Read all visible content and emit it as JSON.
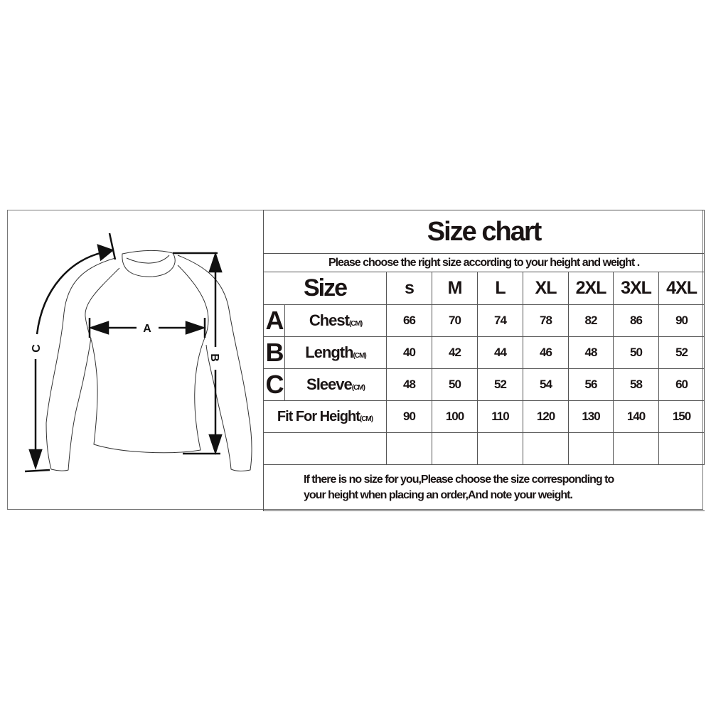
{
  "title": "Size chart",
  "subtitle": "Please choose the right size according to your height and weight .",
  "header": {
    "label": "Size",
    "sizes": [
      "s",
      "M",
      "L",
      "XL",
      "2XL",
      "3XL",
      "4XL"
    ]
  },
  "rows": [
    {
      "letter": "A",
      "label": "Chest",
      "unit": "(CM)",
      "values": [
        "66",
        "70",
        "74",
        "78",
        "82",
        "86",
        "90"
      ]
    },
    {
      "letter": "B",
      "label": "Length",
      "unit": "(CM)",
      "values": [
        "40",
        "42",
        "44",
        "46",
        "48",
        "50",
        "52"
      ]
    },
    {
      "letter": "C",
      "label": "Sleeve",
      "unit": "(CM)",
      "values": [
        "48",
        "50",
        "52",
        "54",
        "56",
        "58",
        "60"
      ]
    }
  ],
  "height_row": {
    "label": "Fit For Height",
    "unit": "(CM)",
    "values": [
      "90",
      "100",
      "110",
      "120",
      "130",
      "140",
      "150"
    ]
  },
  "footer": {
    "line1": "If there is no size for you,Please choose the size corresponding to",
    "line2": "your height when placing an order,And note your weight."
  },
  "diagram": {
    "label_a": "A",
    "label_b": "B",
    "label_c": "C"
  }
}
